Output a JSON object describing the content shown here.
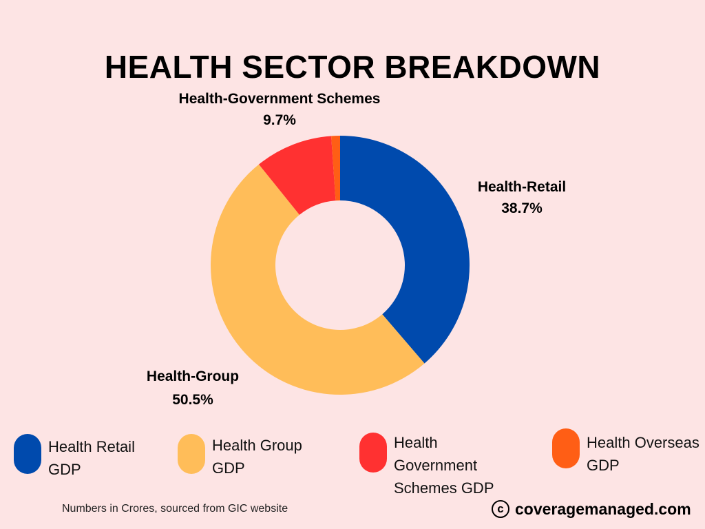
{
  "chart_data": {
    "type": "pie",
    "title": "HEALTH SECTOR BREAKDOWN",
    "categories": [
      "Health-Retail",
      "Health-Group",
      "Health-Government Schemes",
      "Health-Overseas"
    ],
    "values": [
      38.7,
      50.5,
      9.7,
      1.1
    ],
    "value_labels": [
      "38.7%",
      "50.5%",
      "9.7%",
      ""
    ],
    "colors": [
      "#004aad",
      "#ffbd59",
      "#ff3131",
      "#ff5e15"
    ],
    "donut": true
  },
  "labels": {
    "retail": {
      "name": "Health-Retail",
      "pct": "38.7%"
    },
    "group": {
      "name": "Health-Group",
      "pct": "50.5%"
    },
    "gov": {
      "name": "Health-Government Schemes",
      "pct": "9.7%"
    }
  },
  "legend": [
    {
      "label": "Health Retail GDP",
      "color": "#004aad"
    },
    {
      "label": "Health Group GDP",
      "color": "#ffbd59"
    },
    {
      "label": "Health Government Schemes GDP",
      "color": "#ff3131"
    },
    {
      "label": "Health Overseas GDP",
      "color": "#ff5e15"
    }
  ],
  "footnote": "Numbers in Crores, sourced from GIC website",
  "brand": {
    "symbol": "c",
    "name": "coveragemanaged.com"
  }
}
